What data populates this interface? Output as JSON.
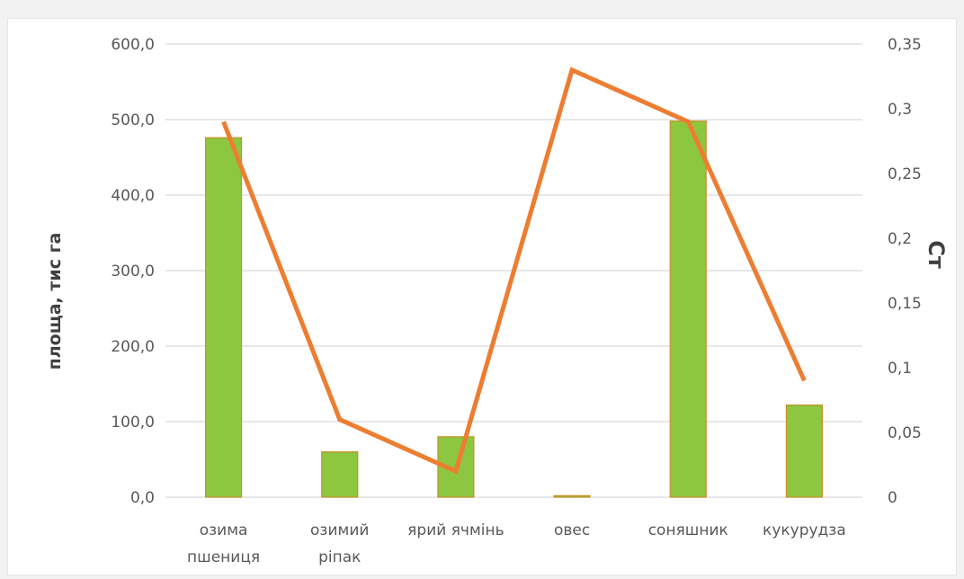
{
  "chart_data": {
    "type": "bar+line",
    "categories": [
      [
        "озима",
        "пшениця"
      ],
      [
        "озимий",
        "ріпак"
      ],
      [
        "ярий ячмінь"
      ],
      [
        "овес"
      ],
      [
        "соняшник"
      ],
      [
        "кукурудза"
      ]
    ],
    "bar_series": {
      "values": [
        476,
        60,
        80,
        2,
        498,
        122
      ],
      "color": "#8dc63f",
      "border_color": "#c8902a"
    },
    "line_series": {
      "values": [
        0.29,
        0.06,
        0.02,
        0.33,
        0.29,
        0.09
      ],
      "color": "#ed7d31"
    },
    "y_left": {
      "label": "площа, тис га",
      "ylim": [
        0,
        600
      ],
      "ticks": [
        "0,0",
        "100,0",
        "200,0",
        "300,0",
        "400,0",
        "500,0",
        "600,0"
      ]
    },
    "y_right": {
      "label": "Ст",
      "ylim": [
        0,
        0.35
      ],
      "ticks": [
        "0",
        "0,05",
        "0,1",
        "0,15",
        "0,2",
        "0,25",
        "0,3",
        "0,35"
      ]
    },
    "grid": true,
    "legend": false
  }
}
